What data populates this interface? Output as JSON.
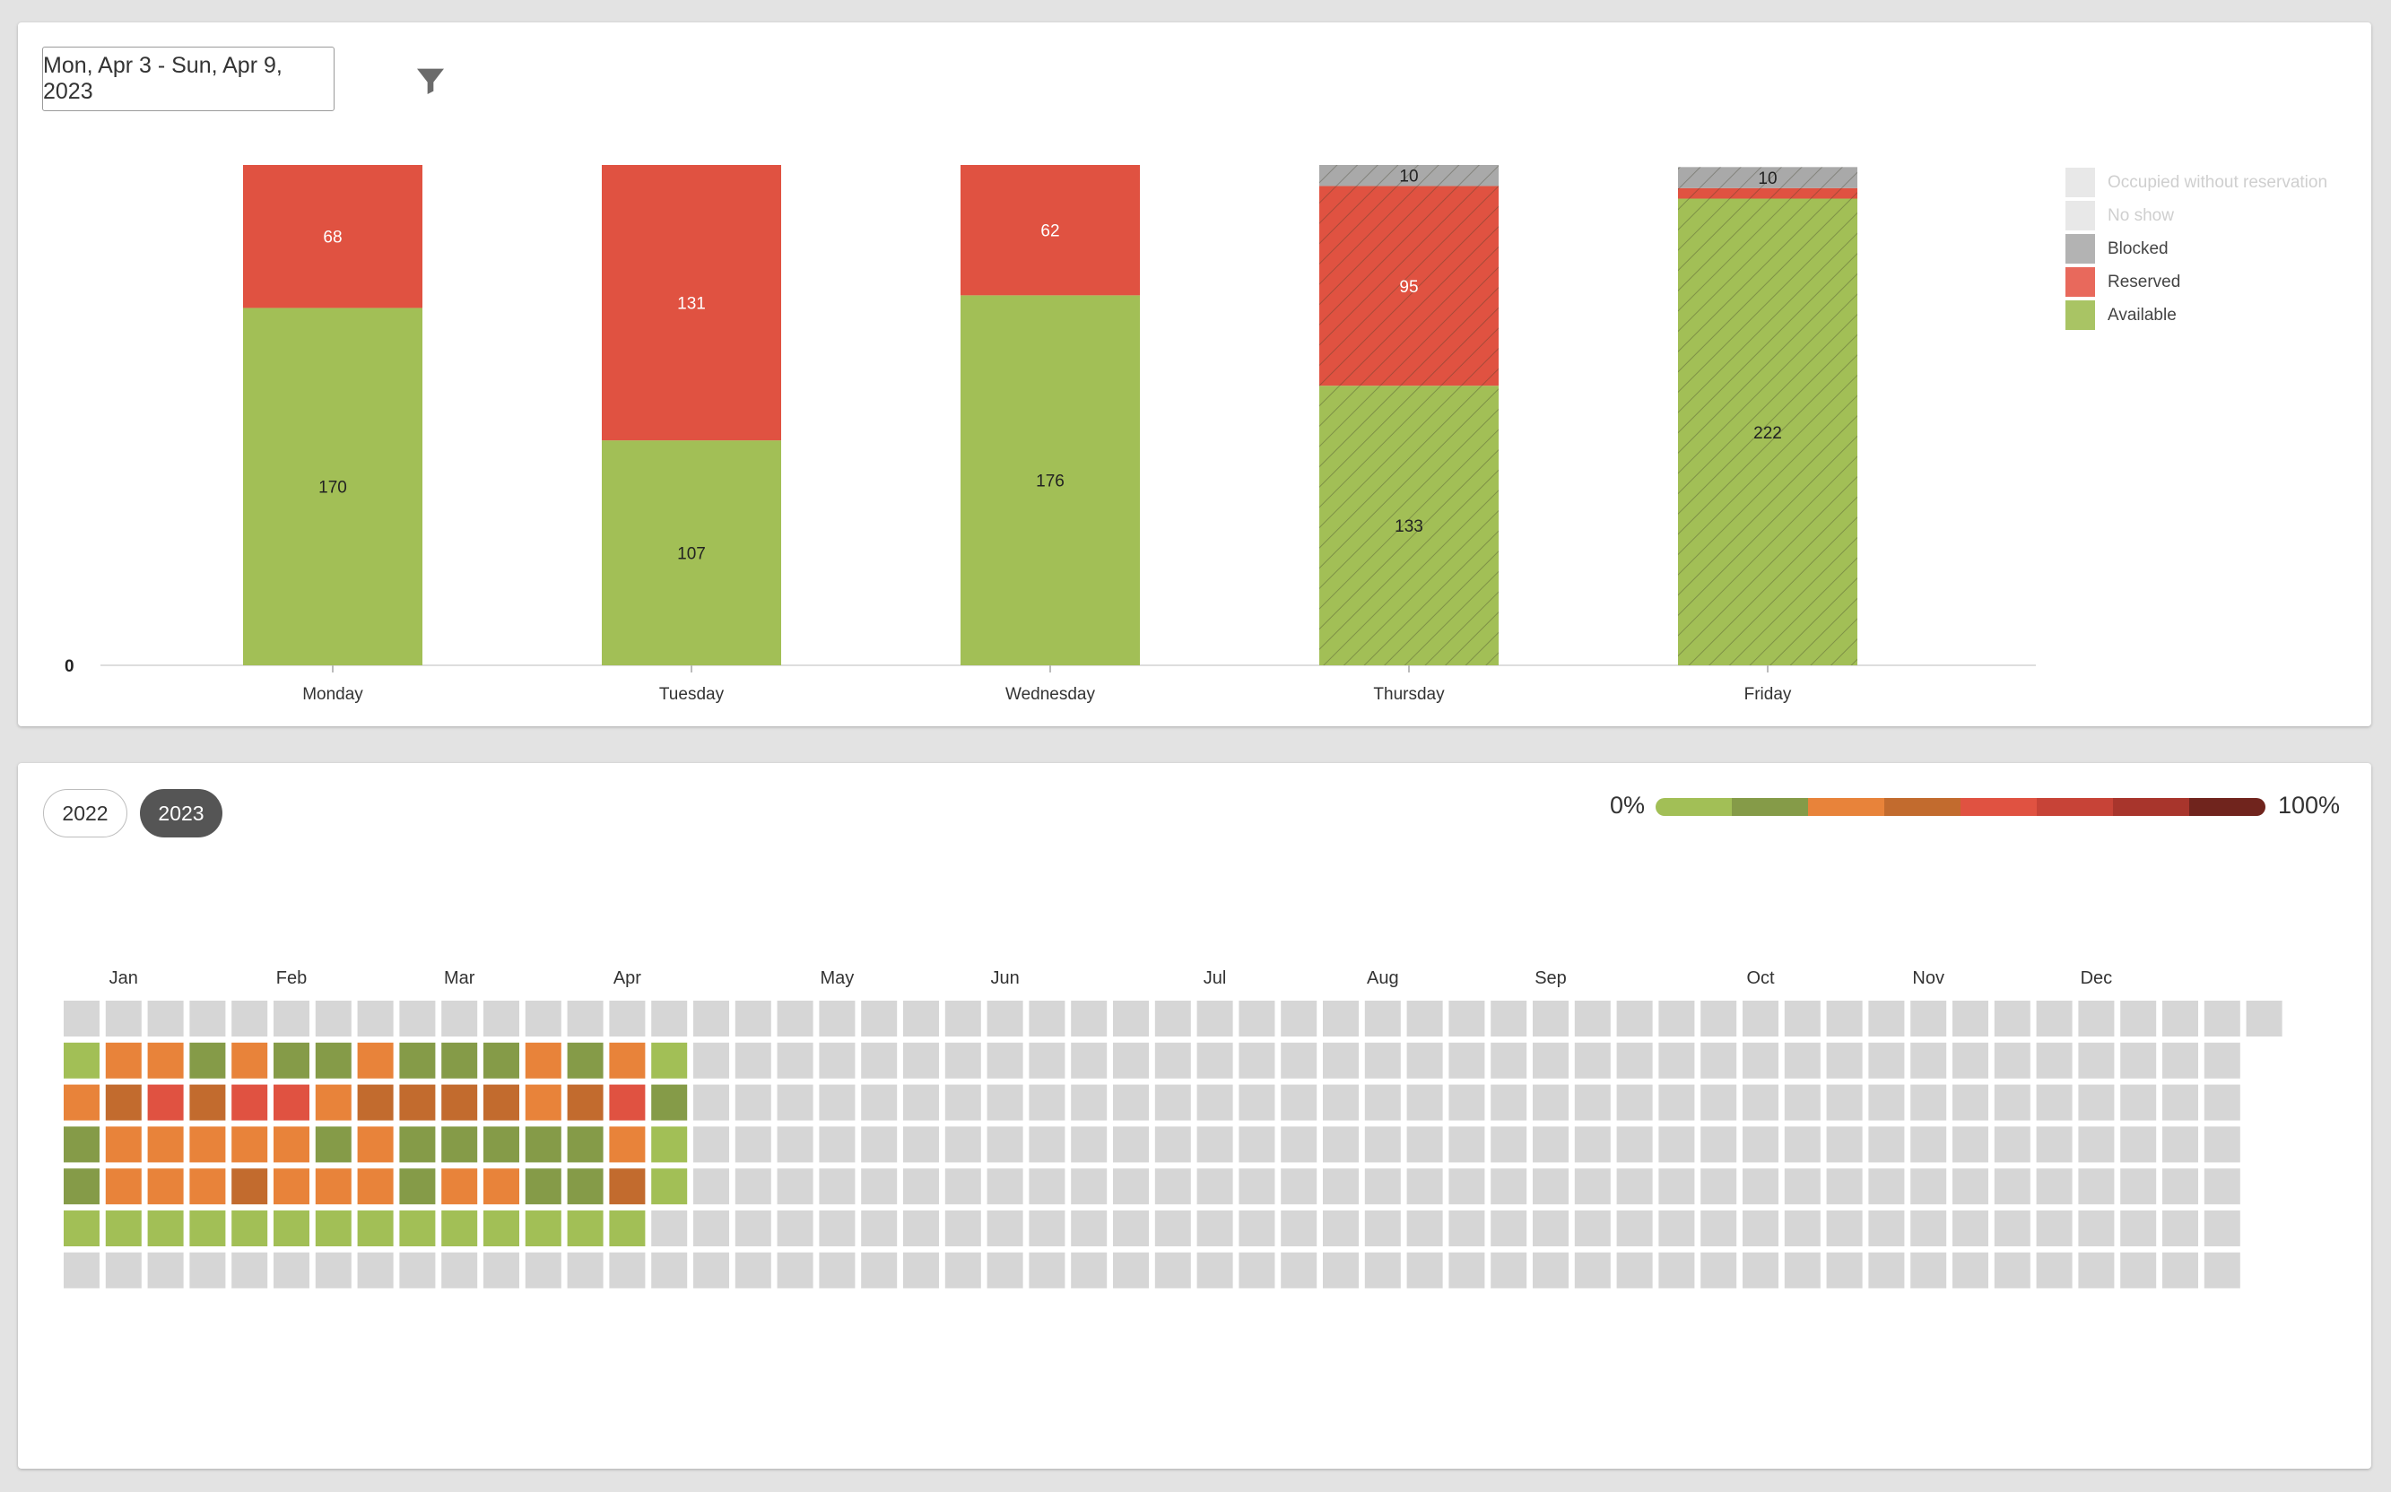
{
  "toolbar": {
    "date_range": "Mon, Apr 3 - Sun, Apr 9, 2023",
    "filter_icon": "filter-icon"
  },
  "colors": {
    "available": "#a2bf56",
    "reserved": "#e05241",
    "blocked": "#a9a9a9",
    "no_show": "#ececec",
    "occupied_without_reservation": "#ececec"
  },
  "legend": [
    {
      "key": "occupied_without_reservation",
      "label": "Occupied without reservation",
      "color": "#e8e8e8",
      "disabled": true
    },
    {
      "key": "no_show",
      "label": "No show",
      "color": "#e8e8e8",
      "disabled": true
    },
    {
      "key": "blocked",
      "label": "Blocked",
      "color": "#b3b3b3",
      "disabled": false
    },
    {
      "key": "reserved",
      "label": "Reserved",
      "color": "#e8695c",
      "disabled": false
    },
    {
      "key": "available",
      "label": "Available",
      "color": "#a9c464",
      "disabled": false
    }
  ],
  "chart_data": {
    "type": "bar",
    "stacked": true,
    "categories": [
      "Monday",
      "Tuesday",
      "Wednesday",
      "Thursday",
      "Friday"
    ],
    "series": [
      {
        "name": "Available",
        "values": [
          170,
          107,
          176,
          133,
          222
        ],
        "labels": [
          "170",
          "107",
          "176",
          "133",
          "222"
        ]
      },
      {
        "name": "Reserved",
        "values": [
          68,
          131,
          62,
          95,
          5
        ],
        "labels": [
          "68",
          "131",
          "62",
          "95",
          ""
        ]
      },
      {
        "name": "Blocked",
        "values": [
          0,
          0,
          0,
          10,
          10
        ],
        "labels": [
          "",
          "",
          "",
          "10",
          "10"
        ]
      }
    ],
    "forecast_days": [
      "Thursday",
      "Friday"
    ],
    "y_tick_labels": [
      "0"
    ],
    "ylim": [
      0,
      238
    ],
    "legend_position": "right"
  },
  "calendar": {
    "years": [
      "2022",
      "2023"
    ],
    "selected_year": "2023",
    "scale_min_label": "0%",
    "scale_max_label": "100%",
    "scale_colors": [
      "#a2bf56",
      "#859b48",
      "#e8833a",
      "#c26b2e",
      "#e05241",
      "#c74337",
      "#a8352c",
      "#70241d"
    ],
    "months": [
      "Jan",
      "Feb",
      "Mar",
      "Apr",
      "May",
      "Jun",
      "Jul",
      "Aug",
      "Sep",
      "Oct",
      "Nov",
      "Dec"
    ],
    "month_label_week": [
      1,
      5,
      9,
      13,
      18,
      22,
      27,
      31,
      35,
      40,
      44,
      48
    ],
    "week_count": 53,
    "empty_color": "#d6d6d6",
    "cell_levels": [
      [
        0,
        0,
        0,
        0,
        0,
        0,
        0,
        0,
        0,
        0,
        0,
        0,
        0,
        0,
        0
      ],
      [
        1,
        3,
        3,
        2,
        3,
        2,
        2,
        3,
        2,
        2,
        2,
        3,
        2,
        3,
        1
      ],
      [
        3,
        4,
        5,
        4,
        5,
        5,
        3,
        4,
        4,
        4,
        4,
        3,
        4,
        5,
        2
      ],
      [
        2,
        3,
        3,
        3,
        3,
        3,
        2,
        3,
        2,
        2,
        2,
        2,
        2,
        3,
        1
      ],
      [
        2,
        3,
        3,
        3,
        4,
        3,
        3,
        3,
        2,
        3,
        3,
        2,
        2,
        4,
        1
      ],
      [
        1,
        1,
        1,
        1,
        1,
        1,
        1,
        1,
        1,
        1,
        1,
        1,
        1,
        1,
        0
      ],
      [
        0,
        0,
        0,
        0,
        0,
        0,
        0,
        0,
        0,
        0,
        0,
        0,
        0,
        0,
        0
      ]
    ]
  }
}
